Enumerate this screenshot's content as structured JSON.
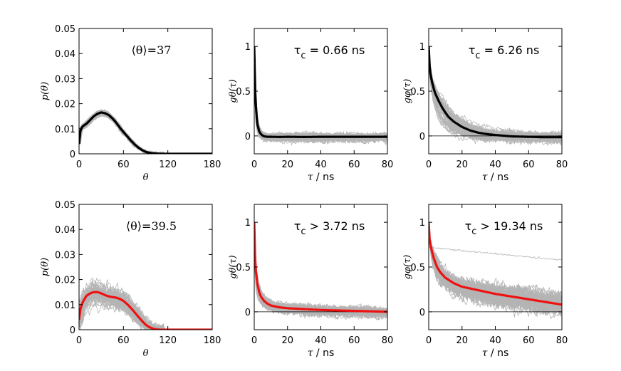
{
  "colors": {
    "gray": "#b4b4b4",
    "black": "#000000",
    "red": "#ee1111"
  },
  "chart_data": [
    {
      "id": "p1",
      "type": "line",
      "ylabel": "p(θ)",
      "xlabel": "θ",
      "xlim": [
        0,
        180
      ],
      "ylim": [
        0,
        0.05
      ],
      "xticks": [
        0,
        60,
        120,
        180
      ],
      "yticks": [
        0,
        0.01,
        0.02,
        0.03,
        0.04,
        0.05
      ],
      "ytick_labels": [
        "0",
        "0.01",
        "0.02",
        "0.03",
        "0.04",
        "0.05"
      ],
      "annotation": "⟨θ⟩=37",
      "main_color": "black",
      "series": [
        {
          "name": "mean",
          "x": [
            0,
            2,
            5,
            10,
            15,
            20,
            25,
            30,
            35,
            40,
            45,
            50,
            55,
            60,
            65,
            70,
            75,
            80,
            85,
            90,
            95,
            100,
            105,
            110,
            115,
            120,
            130,
            180
          ],
          "values": [
            0.004,
            0.0095,
            0.011,
            0.012,
            0.0135,
            0.015,
            0.016,
            0.0165,
            0.0162,
            0.0155,
            0.0142,
            0.0125,
            0.0105,
            0.0087,
            0.007,
            0.0053,
            0.0038,
            0.0025,
            0.0015,
            0.0008,
            0.0004,
            0.0002,
            0.0001,
            0.0,
            0.0,
            0.0,
            0.0,
            0.0
          ]
        }
      ]
    },
    {
      "id": "p2",
      "type": "line",
      "ylabel": "gθ(τ)",
      "xlabel": "τ / ns",
      "xlim": [
        0,
        80
      ],
      "ylim": [
        -0.2,
        1.2
      ],
      "xticks": [
        0,
        20,
        40,
        60,
        80
      ],
      "yticks": [
        0,
        0.5,
        1
      ],
      "ytick_labels": [
        "0",
        "0.5",
        "1"
      ],
      "annotation": "τc = 0.66 ns",
      "tau": 0.66,
      "main_color": "black",
      "series": [
        {
          "name": "mean",
          "x": [
            0,
            0.3,
            0.6,
            1,
            1.5,
            2,
            3,
            4,
            5,
            6,
            8,
            10,
            15,
            20,
            30,
            40,
            60,
            80
          ],
          "values": [
            1.0,
            0.72,
            0.5,
            0.33,
            0.2,
            0.12,
            0.05,
            0.02,
            0.005,
            -0.005,
            -0.01,
            -0.01,
            -0.012,
            -0.01,
            -0.012,
            -0.01,
            -0.01,
            -0.01
          ]
        }
      ]
    },
    {
      "id": "p3",
      "type": "line",
      "ylabel": "gφ(τ)",
      "xlabel": "τ / ns",
      "xlim": [
        0,
        80
      ],
      "ylim": [
        -0.2,
        1.2
      ],
      "xticks": [
        0,
        20,
        40,
        60,
        80
      ],
      "yticks": [
        0,
        0.5,
        1
      ],
      "ytick_labels": [
        "0",
        "0.5",
        "1"
      ],
      "annotation": "τc = 6.26 ns",
      "tau": 6.26,
      "main_color": "black",
      "series": [
        {
          "name": "mean",
          "x": [
            0,
            0.5,
            1,
            2,
            3,
            4,
            6,
            8,
            10,
            12,
            15,
            20,
            25,
            30,
            35,
            40,
            50,
            60,
            70,
            80
          ],
          "values": [
            1.0,
            0.8,
            0.7,
            0.6,
            0.53,
            0.47,
            0.39,
            0.32,
            0.26,
            0.21,
            0.16,
            0.1,
            0.06,
            0.035,
            0.02,
            0.01,
            -0.005,
            -0.01,
            -0.015,
            -0.015
          ]
        }
      ]
    },
    {
      "id": "p4",
      "type": "line",
      "ylabel": "p(θ)",
      "xlabel": "θ",
      "xlim": [
        0,
        180
      ],
      "ylim": [
        0,
        0.05
      ],
      "xticks": [
        0,
        60,
        120,
        180
      ],
      "yticks": [
        0,
        0.01,
        0.02,
        0.03,
        0.04,
        0.05
      ],
      "ytick_labels": [
        "0",
        "0.01",
        "0.02",
        "0.03",
        "0.04",
        "0.05"
      ],
      "annotation": "⟨θ⟩=39.5",
      "main_color": "red",
      "series": [
        {
          "name": "mean",
          "x": [
            0,
            2,
            5,
            10,
            15,
            20,
            25,
            30,
            35,
            40,
            45,
            50,
            55,
            60,
            65,
            70,
            75,
            80,
            85,
            90,
            95,
            100,
            105,
            110,
            115,
            120,
            130,
            180
          ],
          "values": [
            0.004,
            0.0085,
            0.011,
            0.0135,
            0.0145,
            0.015,
            0.015,
            0.0145,
            0.0138,
            0.0133,
            0.013,
            0.0128,
            0.0123,
            0.0115,
            0.0102,
            0.0087,
            0.007,
            0.0052,
            0.0035,
            0.002,
            0.001,
            0.0004,
            0.0001,
            0.0,
            0.0,
            0.0,
            0.0,
            0.0
          ]
        }
      ]
    },
    {
      "id": "p5",
      "type": "line",
      "ylabel": "gθ(τ)",
      "xlabel": "τ / ns",
      "xlim": [
        0,
        80
      ],
      "ylim": [
        -0.2,
        1.2
      ],
      "xticks": [
        0,
        20,
        40,
        60,
        80
      ],
      "yticks": [
        0,
        0.5,
        1
      ],
      "ytick_labels": [
        "0",
        "0.5",
        "1"
      ],
      "annotation": "τc > 3.72 ns",
      "tau": 3.72,
      "main_color": "red",
      "series": [
        {
          "name": "mean",
          "x": [
            0,
            0.5,
            1,
            2,
            3,
            4,
            6,
            8,
            10,
            15,
            20,
            30,
            40,
            50,
            60,
            70,
            80
          ],
          "values": [
            1.0,
            0.62,
            0.45,
            0.3,
            0.22,
            0.17,
            0.12,
            0.09,
            0.07,
            0.05,
            0.04,
            0.03,
            0.02,
            0.015,
            0.01,
            0.005,
            0.0
          ]
        }
      ]
    },
    {
      "id": "p6",
      "type": "line",
      "ylabel": "gφ(τ)",
      "xlabel": "τ / ns",
      "xlim": [
        0,
        80
      ],
      "ylim": [
        -0.2,
        1.2
      ],
      "xticks": [
        0,
        20,
        40,
        60,
        80
      ],
      "yticks": [
        0,
        0.5,
        1
      ],
      "ytick_labels": [
        "0",
        "0.5",
        "1"
      ],
      "annotation": "τc > 19.34 ns",
      "tau": 19.34,
      "main_color": "red",
      "series": [
        {
          "name": "mean",
          "x": [
            0,
            0.5,
            1,
            2,
            3,
            5,
            7,
            10,
            15,
            20,
            25,
            30,
            40,
            50,
            60,
            70,
            80
          ],
          "values": [
            1.0,
            0.82,
            0.75,
            0.67,
            0.6,
            0.5,
            0.44,
            0.38,
            0.32,
            0.28,
            0.26,
            0.24,
            0.2,
            0.17,
            0.14,
            0.11,
            0.08
          ]
        }
      ]
    }
  ]
}
